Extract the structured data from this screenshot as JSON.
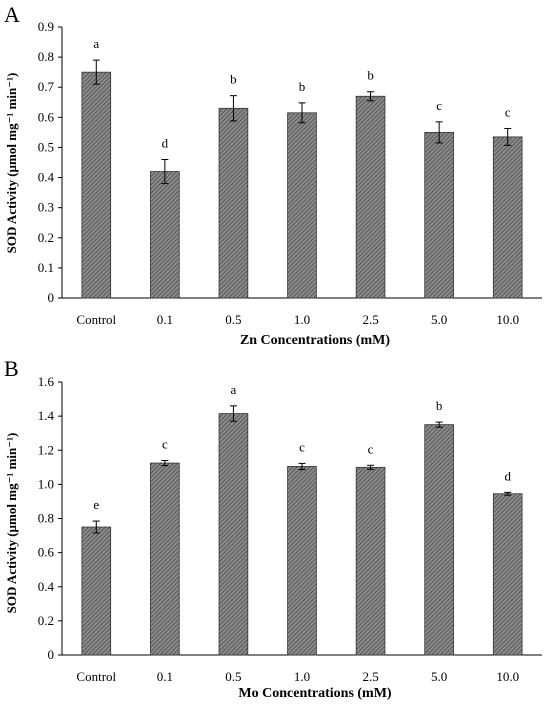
{
  "chart_data": [
    {
      "panel_label": "A",
      "type": "bar",
      "title": "",
      "xlabel": "Zn  Concentrations (mM)",
      "ylabel": "SOD Activity (µmol mg⁻¹ min⁻¹)",
      "ylim": [
        0,
        0.9
      ],
      "yticks": [
        0,
        0.1,
        0.2,
        0.3,
        0.4,
        0.5,
        0.6,
        0.7,
        0.8,
        0.9
      ],
      "ytick_labels": [
        "0",
        "0.1",
        "0.2",
        "0.3",
        "0.4",
        "0.5",
        "0.6",
        "0.7",
        "0.8",
        "0.9"
      ],
      "categories": [
        "Control",
        "0.1",
        "0.5",
        "1.0",
        "2.5",
        "5.0",
        "10.0"
      ],
      "values": [
        0.75,
        0.42,
        0.63,
        0.615,
        0.67,
        0.55,
        0.535
      ],
      "errors": [
        0.04,
        0.04,
        0.042,
        0.033,
        0.015,
        0.035,
        0.028
      ],
      "significance": [
        "a",
        "d",
        "b",
        "b",
        "b",
        "c",
        "c"
      ],
      "grid": false,
      "bar_color": "#7a7a7a"
    },
    {
      "panel_label": "B",
      "type": "bar",
      "title": "",
      "xlabel": "Mo  Concentrations (mM)",
      "ylabel": "SOD Activity (µmol mg⁻¹ min⁻¹)",
      "ylim": [
        0,
        1.6
      ],
      "yticks": [
        0,
        0.2,
        0.4,
        0.6,
        0.8,
        1.0,
        1.2,
        1.4,
        1.6
      ],
      "ytick_labels": [
        "0",
        "0.2",
        "0.4",
        "0.6",
        "0.8",
        "1.0",
        "1.2",
        "1.4",
        "1.6"
      ],
      "categories": [
        "Control",
        "0.1",
        "0.5",
        "1.0",
        "2.5",
        "5.0",
        "10.0"
      ],
      "values": [
        0.75,
        1.125,
        1.415,
        1.105,
        1.1,
        1.35,
        0.945
      ],
      "errors": [
        0.035,
        0.015,
        0.045,
        0.018,
        0.012,
        0.015,
        0.008
      ],
      "significance": [
        "e",
        "c",
        "a",
        "c",
        "c",
        "b",
        "d"
      ],
      "grid": false,
      "bar_color": "#7a7a7a"
    }
  ]
}
